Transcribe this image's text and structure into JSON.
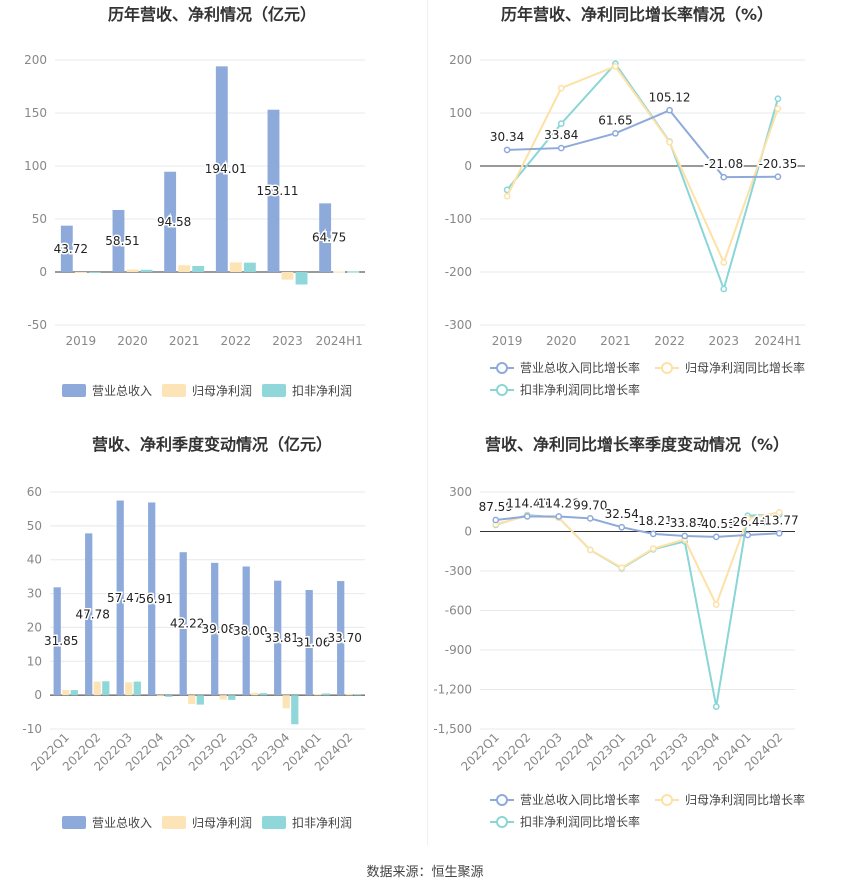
{
  "source_label": "数据来源：恒生聚源",
  "colors": {
    "revenue": "#8eaadb",
    "parent_profit": "#fde4b6",
    "deducted_profit": "#8fd7d8",
    "revenue_line": "#8eaadb",
    "parent_line": "#fde1a6",
    "deducted_line": "#89d6d6"
  },
  "chart_data": [
    {
      "type": "bar",
      "title": "历年营收、净利情况（亿元）",
      "categories": [
        "2019",
        "2020",
        "2021",
        "2022",
        "2023",
        "2024H1"
      ],
      "ylim": [
        -50,
        200
      ],
      "yticks": [
        -50,
        0,
        50,
        100,
        150,
        200
      ],
      "series": [
        {
          "name": "营业总收入",
          "values": [
            43.72,
            58.51,
            94.58,
            194.01,
            153.11,
            64.75
          ],
          "labels": [
            "43.72",
            "58.51",
            "94.58",
            "194.01",
            "153.11",
            "64.75"
          ]
        },
        {
          "name": "归母净利润",
          "values": [
            -0.6,
            2.3,
            6.4,
            9.1,
            -7.2,
            0.5
          ]
        },
        {
          "name": "扣非净利润",
          "values": [
            -0.8,
            2.1,
            5.7,
            8.8,
            -11.8,
            0.4
          ]
        }
      ],
      "legend": "bottom",
      "grid": true
    },
    {
      "type": "line",
      "title": "历年营收、净利同比增长率情况（%）",
      "categories": [
        "2019",
        "2020",
        "2021",
        "2022",
        "2023",
        "2024H1"
      ],
      "ylim": [
        -300,
        200
      ],
      "yticks": [
        -300,
        -200,
        -100,
        0,
        100,
        200
      ],
      "series": [
        {
          "name": "营业总收入同比增长率",
          "values": [
            30.34,
            33.84,
            61.65,
            105.12,
            -21.08,
            -20.35
          ],
          "labels": [
            "30.34",
            "33.84",
            "61.65",
            "105.12",
            "-21.08",
            "-20.35"
          ]
        },
        {
          "name": "归母净利润同比增长率",
          "values": [
            -57,
            147,
            188,
            45,
            -182,
            108
          ]
        },
        {
          "name": "扣非净利润同比增长率",
          "values": [
            -45,
            80,
            193,
            46,
            -232,
            127
          ]
        }
      ],
      "legend": "bottom",
      "grid": true
    },
    {
      "type": "bar",
      "title": "营收、净利季度变动情况（亿元）",
      "categories": [
        "2022Q1",
        "2022Q2",
        "2022Q3",
        "2022Q4",
        "2023Q1",
        "2023Q2",
        "2023Q3",
        "2023Q4",
        "2024Q1",
        "2024Q2"
      ],
      "ylim": [
        -10,
        60
      ],
      "yticks": [
        -10,
        0,
        10,
        20,
        30,
        40,
        50,
        60
      ],
      "series": [
        {
          "name": "营业总收入",
          "values": [
            31.85,
            47.78,
            57.47,
            56.91,
            42.22,
            39.08,
            38.0,
            33.81,
            31.06,
            33.7
          ],
          "labels": [
            "31.85",
            "47.78",
            "57.47",
            "56.91",
            "42.22",
            "39.08",
            "38.00",
            "33.81",
            "31.06",
            "33.70"
          ]
        },
        {
          "name": "归母净利润",
          "values": [
            1.5,
            4.0,
            3.8,
            -0.3,
            -2.6,
            -1.3,
            0.7,
            -3.9,
            0.3,
            0.4
          ]
        },
        {
          "name": "扣非净利润",
          "values": [
            1.5,
            4.1,
            4.0,
            -0.5,
            -2.8,
            -1.4,
            0.6,
            -8.6,
            0.5,
            0.3
          ]
        }
      ],
      "legend": "bottom",
      "grid": true
    },
    {
      "type": "line",
      "title": "营收、净利同比增长率季度变动情况（%）",
      "categories": [
        "2022Q1",
        "2022Q2",
        "2022Q3",
        "2022Q4",
        "2023Q1",
        "2023Q2",
        "2023Q3",
        "2023Q4",
        "2024Q1",
        "2024Q2"
      ],
      "ylim": [
        -1500,
        300
      ],
      "yticks": [
        -1500,
        -1200,
        -900,
        -600,
        -300,
        0,
        300
      ],
      "ytick_labels": [
        "-1,500",
        "-1,200",
        "-900",
        "-600",
        "-300",
        "0",
        "300"
      ],
      "series": [
        {
          "name": "营业总收入同比增长率",
          "values": [
            87.59,
            114.4,
            114.28,
            99.7,
            32.54,
            -18.21,
            -33.87,
            -40.59,
            -26.44,
            -13.77
          ],
          "labels": [
            "87.59",
            "114.40",
            "114.28",
            "99.70",
            "32.54",
            "-18.21",
            "-33.87",
            "-40.59",
            "-26.44",
            "-13.77"
          ]
        },
        {
          "name": "归母净利润同比增长率",
          "values": [
            55,
            120,
            105,
            -140,
            -275,
            -130,
            -60,
            -555,
            100,
            145
          ]
        },
        {
          "name": "扣非净利润同比增长率",
          "values": [
            50,
            125,
            105,
            -140,
            -280,
            -135,
            -75,
            -1330,
            120,
            130
          ]
        }
      ],
      "legend": "bottom",
      "grid": true
    }
  ]
}
